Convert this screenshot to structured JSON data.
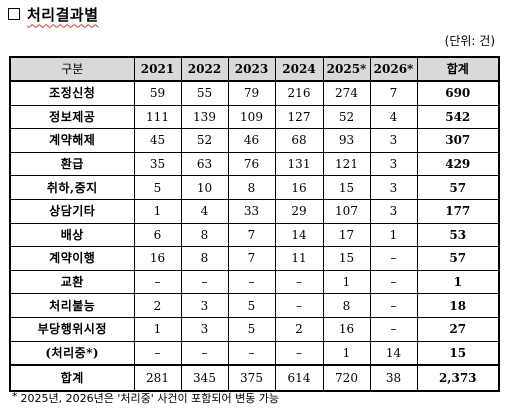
{
  "title": "처리결과별",
  "unit": "(단위: 건)",
  "table": {
    "headers": [
      "구분",
      "2021",
      "2022",
      "2023",
      "2024",
      "2025*",
      "2026*",
      "합계"
    ],
    "rows": [
      {
        "category": "조정신청",
        "values": [
          "59",
          "55",
          "79",
          "216",
          "274",
          "7",
          "690"
        ]
      },
      {
        "category": "정보제공",
        "values": [
          "111",
          "139",
          "109",
          "127",
          "52",
          "4",
          "542"
        ]
      },
      {
        "category": "계약해제",
        "values": [
          "45",
          "52",
          "46",
          "68",
          "93",
          "3",
          "307"
        ]
      },
      {
        "category": "환급",
        "values": [
          "35",
          "63",
          "76",
          "131",
          "121",
          "3",
          "429"
        ]
      },
      {
        "category": "취하,중지",
        "values": [
          "5",
          "10",
          "8",
          "16",
          "15",
          "3",
          "57"
        ]
      },
      {
        "category": "상담기타",
        "values": [
          "1",
          "4",
          "33",
          "29",
          "107",
          "3",
          "177"
        ]
      },
      {
        "category": "배상",
        "values": [
          "6",
          "8",
          "7",
          "14",
          "17",
          "1",
          "53"
        ]
      },
      {
        "category": "계약이행",
        "values": [
          "16",
          "8",
          "7",
          "11",
          "15",
          "–",
          "57"
        ]
      },
      {
        "category": "교환",
        "values": [
          "–",
          "–",
          "–",
          "–",
          "1",
          "–",
          "1"
        ]
      },
      {
        "category": "처리불능",
        "values": [
          "2",
          "3",
          "5",
          "–",
          "8",
          "–",
          "18"
        ]
      },
      {
        "category": "부당행위시정",
        "values": [
          "1",
          "3",
          "5",
          "2",
          "16",
          "–",
          "27"
        ]
      },
      {
        "category": "(처리중*)",
        "values": [
          "–",
          "–",
          "–",
          "–",
          "1",
          "14",
          "15"
        ]
      }
    ],
    "total": {
      "category": "합계",
      "values": [
        "281",
        "345",
        "375",
        "614",
        "720",
        "38",
        "2,373"
      ]
    }
  },
  "footnote_mark": "*",
  "footnote": "2025년, 2026년은 '처리중' 사건이 포함되어 변동 가능"
}
